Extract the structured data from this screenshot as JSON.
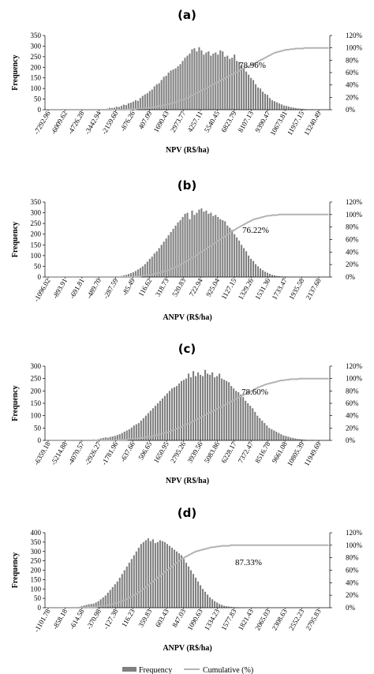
{
  "chart_data": [
    {
      "type": "bar",
      "panel": "(a)",
      "xlabel": "NPV (R$/ha)",
      "ylabel": "Frequency",
      "ylim": [
        0,
        350
      ],
      "yticks": [
        0,
        50,
        100,
        150,
        200,
        250,
        300,
        350
      ],
      "y2lim": [
        0,
        120
      ],
      "y2ticks": [
        "0%",
        "20%",
        "40%",
        "60%",
        "80%",
        "100%",
        "120%"
      ],
      "xticks": [
        "-7292.96",
        "-6009.62",
        "-4726.28",
        "-3442.94",
        "-2159.60",
        "-876.26",
        "407.09",
        "1690.43",
        "2973.77",
        "4257.11",
        "5540.45",
        "6823.79",
        "8107.13",
        "9390.47",
        "10673.81",
        "11957.15",
        "13240.49"
      ],
      "annotation": "78.96%",
      "series": [
        {
          "name": "Frequency",
          "values": [
            0,
            0,
            0,
            0,
            0,
            0,
            0,
            0,
            0,
            0,
            0,
            0,
            0,
            0,
            0,
            0,
            0,
            0,
            0,
            0,
            1,
            0,
            2,
            0,
            4,
            3,
            5,
            9,
            8,
            10,
            14,
            13,
            18,
            24,
            22,
            30,
            33,
            38,
            45,
            42,
            55,
            65,
            72,
            78,
            88,
            95,
            110,
            120,
            125,
            140,
            155,
            160,
            175,
            185,
            190,
            195,
            205,
            215,
            230,
            245,
            255,
            265,
            285,
            290,
            275,
            295,
            280,
            260,
            270,
            275,
            255,
            265,
            270,
            260,
            280,
            275,
            250,
            255,
            240,
            245,
            260,
            230,
            225,
            210,
            195,
            180,
            165,
            150,
            140,
            120,
            105,
            100,
            85,
            75,
            70,
            55,
            45,
            40,
            35,
            30,
            25,
            20,
            18,
            15,
            12,
            10,
            8,
            6,
            5,
            4,
            3,
            2,
            1,
            2,
            1,
            1,
            0,
            0,
            0,
            0,
            0
          ]
        },
        {
          "name": "Cumulative (%)",
          "values": [
            0,
            0,
            0,
            0,
            0,
            0,
            0,
            0,
            0,
            0,
            0,
            0,
            0,
            0,
            0,
            0,
            0,
            0,
            0,
            0,
            0,
            0,
            0,
            0,
            0,
            0,
            0,
            0,
            0,
            0,
            0,
            0,
            0,
            0,
            0,
            1,
            1,
            1,
            1,
            2,
            2,
            2,
            3,
            3,
            3,
            4,
            4,
            5,
            6,
            6,
            7,
            8,
            9,
            10,
            11,
            12,
            13,
            15,
            16,
            17,
            19,
            21,
            23,
            25,
            27,
            29,
            31,
            33,
            35,
            37,
            39,
            41,
            43,
            45,
            47,
            49,
            51,
            53,
            55,
            57,
            59,
            61,
            63,
            65,
            67,
            69,
            70,
            72,
            74,
            76,
            78,
            80,
            82,
            84,
            86,
            88,
            90,
            92,
            93,
            94,
            95,
            96,
            97,
            97,
            98,
            98,
            99,
            99,
            99,
            99,
            100,
            100,
            100,
            100,
            100,
            100,
            100,
            100,
            100,
            100,
            100
          ]
        }
      ]
    },
    {
      "type": "bar",
      "panel": "(b)",
      "xlabel": "ANPV (R$/ha)",
      "ylabel": "Frequency",
      "ylim": [
        0,
        350
      ],
      "yticks": [
        0,
        50,
        100,
        150,
        200,
        250,
        300,
        350
      ],
      "y2lim": [
        0,
        120
      ],
      "y2ticks": [
        "0%",
        "20%",
        "40%",
        "60%",
        "80%",
        "100%",
        "120%"
      ],
      "xticks": [
        "-1096.02",
        "-893.91",
        "-691.81",
        "-489.70",
        "-287.59",
        "-85.49",
        "116.62",
        "318.73",
        "520.83",
        "722.94",
        "925.04",
        "1127.15",
        "1329.26",
        "1531.36",
        "1733.47",
        "1935.58",
        "2137.68"
      ],
      "annotation": "76.22%",
      "series": [
        {
          "name": "Frequency",
          "values": [
            0,
            0,
            0,
            0,
            0,
            0,
            0,
            0,
            0,
            0,
            0,
            0,
            0,
            0,
            0,
            0,
            0,
            0,
            0,
            0,
            0,
            0,
            0,
            0,
            0,
            0,
            0,
            0,
            1,
            1,
            2,
            3,
            5,
            8,
            10,
            14,
            18,
            22,
            28,
            35,
            42,
            50,
            60,
            72,
            85,
            95,
            110,
            120,
            135,
            150,
            165,
            180,
            195,
            210,
            225,
            240,
            255,
            265,
            280,
            295,
            300,
            270,
            310,
            290,
            300,
            315,
            320,
            305,
            310,
            295,
            300,
            285,
            290,
            280,
            270,
            265,
            260,
            240,
            230,
            220,
            200,
            185,
            170,
            150,
            135,
            120,
            100,
            85,
            75,
            60,
            50,
            40,
            32,
            25,
            20,
            15,
            10,
            8,
            5,
            4,
            3,
            2,
            1,
            1,
            0,
            0,
            0,
            0,
            0,
            0,
            0,
            0,
            0,
            0,
            0,
            0,
            0,
            0,
            0,
            0,
            0
          ]
        },
        {
          "name": "Cumulative (%)",
          "values": [
            0,
            0,
            0,
            0,
            0,
            0,
            0,
            0,
            0,
            0,
            0,
            0,
            0,
            0,
            0,
            0,
            0,
            0,
            0,
            0,
            0,
            0,
            0,
            0,
            0,
            0,
            0,
            0,
            0,
            0,
            0,
            0,
            0,
            0,
            0,
            0,
            0,
            0,
            1,
            1,
            1,
            2,
            2,
            3,
            3,
            4,
            5,
            6,
            7,
            8,
            9,
            10,
            11,
            13,
            14,
            16,
            18,
            20,
            22,
            24,
            26,
            28,
            31,
            33,
            35,
            38,
            40,
            43,
            45,
            48,
            50,
            53,
            55,
            58,
            60,
            63,
            65,
            68,
            70,
            73,
            75,
            78,
            80,
            82,
            84,
            86,
            88,
            90,
            92,
            93,
            94,
            95,
            96,
            97,
            98,
            98,
            99,
            99,
            99,
            100,
            100,
            100,
            100,
            100,
            100,
            100,
            100,
            100,
            100,
            100,
            100,
            100,
            100,
            100,
            100,
            100,
            100,
            100,
            100,
            100,
            100
          ]
        }
      ]
    },
    {
      "type": "bar",
      "panel": "(c)",
      "xlabel": "NPV (R$/ha)",
      "ylabel": "Frequency",
      "ylim": [
        0,
        300
      ],
      "yticks": [
        0,
        50,
        100,
        150,
        200,
        250,
        300
      ],
      "y2lim": [
        0,
        120
      ],
      "y2ticks": [
        "0%",
        "20%",
        "40%",
        "60%",
        "80%",
        "100%",
        "120%"
      ],
      "xticks": [
        "-6359.18",
        "-5214.88",
        "-4070.57",
        "-2926.27",
        "-1781.96",
        "-637.66",
        "506.65",
        "1650.95",
        "2795.26",
        "3939.56",
        "5083.86",
        "6228.17",
        "7372.47",
        "8516.78",
        "9661.08",
        "10805.39",
        "11949.69"
      ],
      "annotation": "78.60%",
      "series": [
        {
          "name": "Frequency",
          "values": [
            0,
            0,
            0,
            0,
            0,
            0,
            0,
            0,
            0,
            0,
            0,
            0,
            0,
            0,
            1,
            0,
            2,
            1,
            3,
            2,
            4,
            3,
            5,
            8,
            10,
            12,
            11,
            14,
            16,
            18,
            22,
            25,
            30,
            35,
            40,
            45,
            52,
            60,
            65,
            70,
            80,
            90,
            100,
            110,
            120,
            130,
            140,
            150,
            160,
            170,
            180,
            190,
            200,
            210,
            215,
            220,
            230,
            240,
            245,
            250,
            270,
            255,
            280,
            260,
            275,
            265,
            260,
            285,
            270,
            265,
            275,
            255,
            260,
            270,
            250,
            245,
            240,
            235,
            220,
            210,
            200,
            195,
            185,
            175,
            160,
            150,
            140,
            130,
            115,
            100,
            90,
            80,
            70,
            60,
            50,
            45,
            40,
            35,
            30,
            25,
            20,
            18,
            15,
            12,
            10,
            8,
            6,
            5,
            4,
            3,
            2,
            1,
            2,
            1,
            1,
            0,
            0,
            0,
            0,
            0
          ]
        },
        {
          "name": "Cumulative (%)",
          "values": [
            0,
            0,
            0,
            0,
            0,
            0,
            0,
            0,
            0,
            0,
            0,
            0,
            0,
            0,
            0,
            0,
            0,
            0,
            0,
            0,
            0,
            0,
            0,
            0,
            0,
            0,
            0,
            0,
            0,
            0,
            0,
            1,
            1,
            1,
            1,
            2,
            2,
            2,
            3,
            3,
            4,
            4,
            5,
            6,
            6,
            7,
            8,
            9,
            10,
            11,
            12,
            13,
            14,
            16,
            17,
            19,
            20,
            22,
            24,
            26,
            27,
            29,
            31,
            33,
            35,
            37,
            39,
            41,
            43,
            45,
            47,
            49,
            51,
            53,
            55,
            57,
            59,
            61,
            63,
            65,
            67,
            69,
            71,
            73,
            75,
            77,
            79,
            81,
            83,
            85,
            87,
            88,
            90,
            91,
            92,
            93,
            94,
            95,
            96,
            97,
            97,
            98,
            98,
            99,
            99,
            99,
            99,
            100,
            100,
            100,
            100,
            100,
            100,
            100,
            100,
            100,
            100,
            100,
            100,
            100
          ]
        }
      ]
    },
    {
      "type": "bar",
      "panel": "(d)",
      "xlabel": "ANPV (R$/ha)",
      "ylabel": "Frequency",
      "ylim": [
        0,
        400
      ],
      "yticks": [
        0,
        50,
        100,
        150,
        200,
        250,
        300,
        350,
        400
      ],
      "y2lim": [
        0,
        120
      ],
      "y2ticks": [
        "0%",
        "20%",
        "40%",
        "60%",
        "80%",
        "100%",
        "120%"
      ],
      "xticks": [
        "-1101.78",
        "-858.18",
        "-614.58",
        "-370.98",
        "-127.38",
        "116.23",
        "359.83",
        "603.43",
        "847.03",
        "1090.63",
        "1334.23",
        "1577.83",
        "1821.43",
        "2065.03",
        "2308.63",
        "2552.23",
        "2795.83"
      ],
      "annotation": "87.33%",
      "series": [
        {
          "name": "Frequency",
          "values": [
            0,
            0,
            0,
            0,
            0,
            0,
            0,
            0,
            0,
            0,
            0,
            1,
            2,
            3,
            5,
            8,
            12,
            15,
            18,
            20,
            22,
            28,
            35,
            45,
            55,
            65,
            80,
            95,
            110,
            125,
            140,
            160,
            180,
            200,
            220,
            240,
            260,
            280,
            300,
            320,
            340,
            350,
            360,
            370,
            355,
            365,
            345,
            350,
            360,
            355,
            350,
            340,
            330,
            320,
            310,
            300,
            290,
            280,
            260,
            240,
            220,
            200,
            180,
            160,
            140,
            120,
            100,
            85,
            70,
            55,
            45,
            35,
            28,
            20,
            15,
            10,
            8,
            6,
            4,
            3,
            2,
            1,
            1,
            0,
            0,
            0,
            0,
            0,
            0,
            0,
            0,
            0,
            0,
            0,
            0,
            0,
            0,
            0,
            0,
            0,
            0,
            0,
            0,
            0,
            0,
            0,
            0,
            0,
            0,
            0,
            0,
            0,
            0,
            0,
            0,
            0,
            0,
            0,
            0,
            0
          ]
        },
        {
          "name": "Cumulative (%)",
          "values": [
            0,
            0,
            0,
            0,
            0,
            0,
            0,
            0,
            0,
            0,
            0,
            0,
            0,
            0,
            0,
            0,
            0,
            0,
            1,
            1,
            1,
            1,
            2,
            2,
            3,
            3,
            4,
            5,
            6,
            7,
            8,
            9,
            11,
            12,
            14,
            16,
            18,
            20,
            22,
            25,
            27,
            30,
            33,
            36,
            39,
            42,
            45,
            48,
            51,
            54,
            57,
            60,
            63,
            66,
            69,
            72,
            75,
            78,
            80,
            82,
            84,
            86,
            88,
            90,
            91,
            92,
            93,
            94,
            95,
            96,
            97,
            97,
            98,
            98,
            99,
            99,
            99,
            99,
            100,
            100,
            100,
            100,
            100,
            100,
            100,
            100,
            100,
            100,
            100,
            100,
            100,
            100,
            100,
            100,
            100,
            100,
            100,
            100,
            100,
            100,
            100,
            100,
            100,
            100,
            100,
            100,
            100,
            100,
            100,
            100,
            100,
            100,
            100,
            100,
            100,
            100,
            100,
            100,
            100,
            100
          ]
        }
      ]
    }
  ],
  "legend": {
    "frequency_label": "Frequency",
    "cumulative_label": "Cumulative (%)"
  },
  "colors": {
    "bars": "#808080",
    "cumulative_line": "#b3b3b3",
    "axis": "#000000"
  }
}
